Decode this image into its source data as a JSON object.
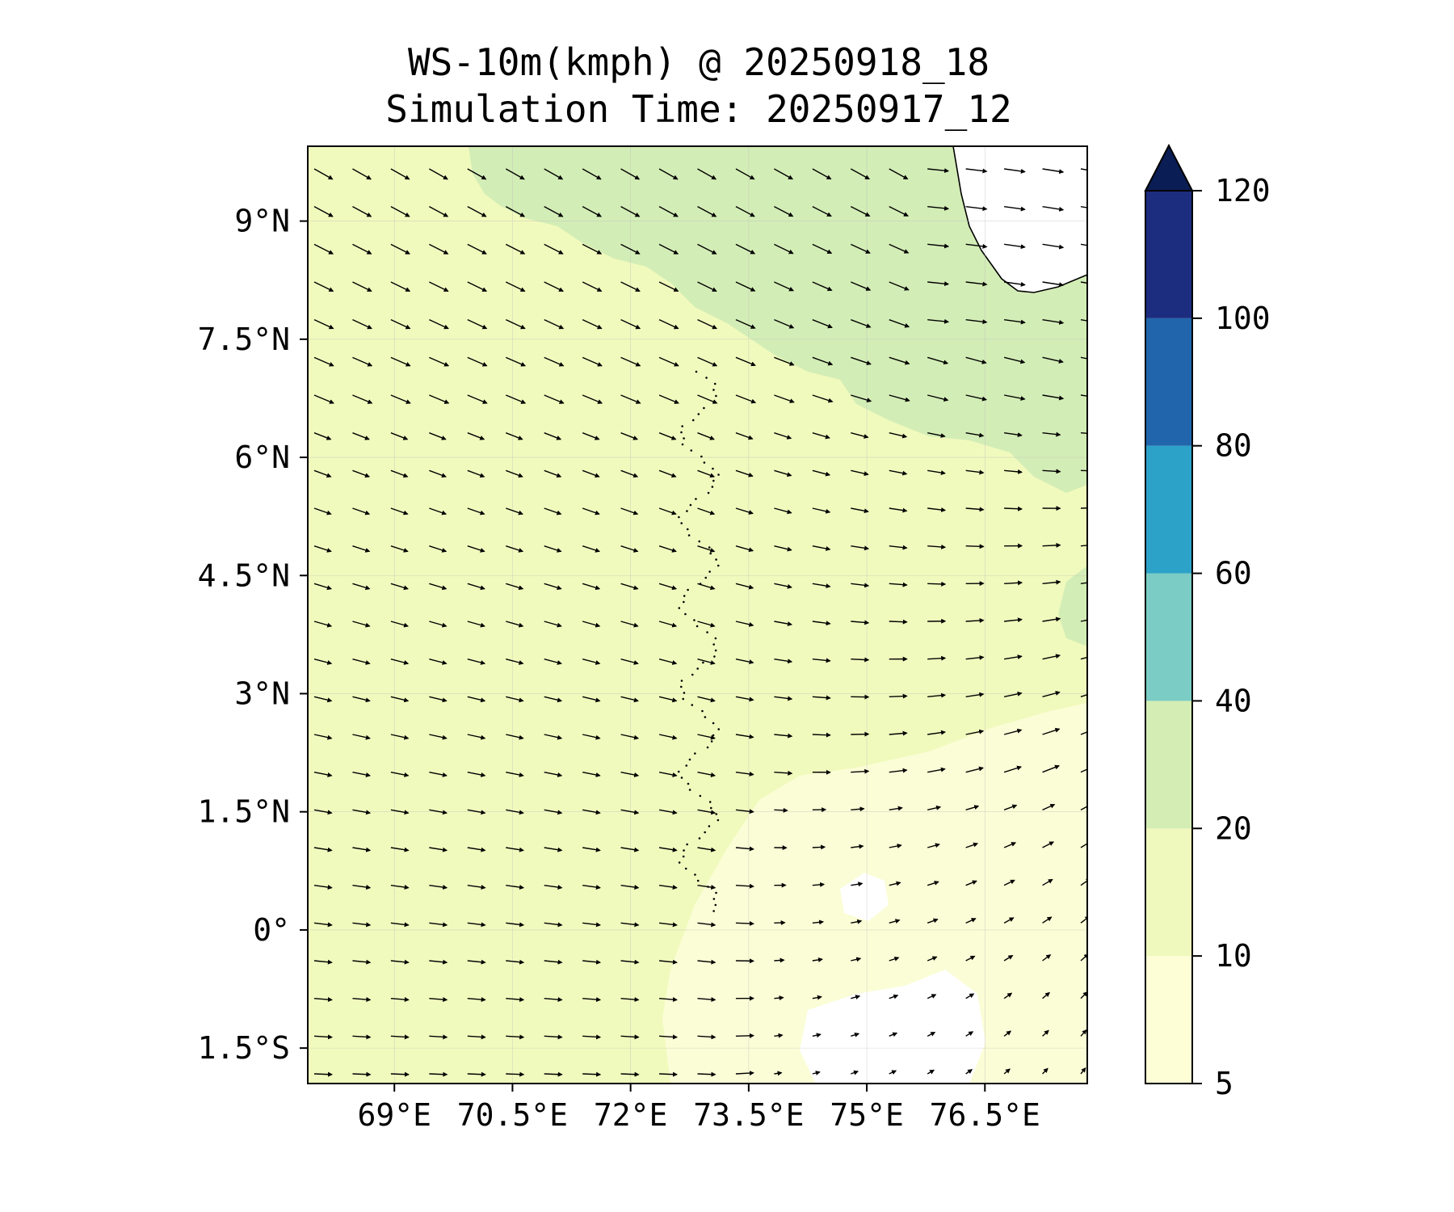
{
  "title": {
    "line1": "WS-10m(kmph) @ 20250918_18",
    "line2": "Simulation Time: 20250917_12"
  },
  "map": {
    "lon_range": [
      67.9,
      77.8
    ],
    "lat_range": [
      -1.95,
      9.95
    ],
    "x_ticks": [
      {
        "value": 69,
        "label": "69°E"
      },
      {
        "value": 70.5,
        "label": "70.5°E"
      },
      {
        "value": 72,
        "label": "72°E"
      },
      {
        "value": 73.5,
        "label": "73.5°E"
      },
      {
        "value": 75,
        "label": "75°E"
      },
      {
        "value": 76.5,
        "label": "76.5°E"
      }
    ],
    "y_ticks": [
      {
        "value": 9,
        "label": "9°N"
      },
      {
        "value": 7.5,
        "label": "7.5°N"
      },
      {
        "value": 6,
        "label": "6°N"
      },
      {
        "value": 4.5,
        "label": "4.5°N"
      },
      {
        "value": 3,
        "label": "3°N"
      },
      {
        "value": 1.5,
        "label": "1.5°N"
      },
      {
        "value": 0,
        "label": "0°"
      },
      {
        "value": -1.5,
        "label": "1.5°S"
      }
    ],
    "gridlines": true,
    "field": "wind speed 10m",
    "vectors": "wind direction arrows"
  },
  "colorbar": {
    "extend": "max",
    "levels": [
      {
        "value": 5,
        "label": "5"
      },
      {
        "value": 10,
        "label": "10"
      },
      {
        "value": 20,
        "label": "20"
      },
      {
        "value": 40,
        "label": "40"
      },
      {
        "value": 60,
        "label": "60"
      },
      {
        "value": 80,
        "label": "80"
      },
      {
        "value": 100,
        "label": "100"
      },
      {
        "value": 120,
        "label": "120"
      }
    ],
    "colors": [
      "#fdfed6",
      "#eff9bd",
      "#d3edb4",
      "#7bccc4",
      "#2ca2c8",
      "#2166ac",
      "#1c2c7e",
      "#0a1e55"
    ]
  }
}
